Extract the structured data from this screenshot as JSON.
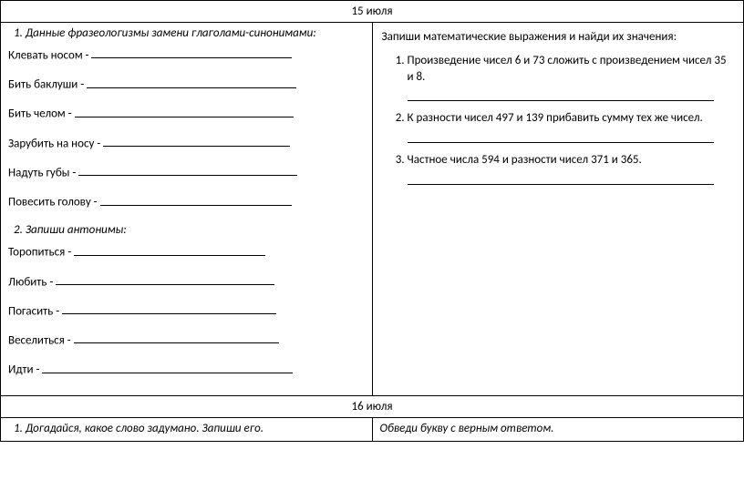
{
  "date1": "15 июля",
  "date2": "16 июля",
  "left": {
    "task1_num": "1.",
    "task1_title": "Данные фразеологизмы замени глаголами-синонимами:",
    "lines": [
      {
        "label": "Клевать носом - ",
        "blank_w": 220
      },
      {
        "label": "Бить баклуши - ",
        "blank_w": 230
      },
      {
        "label": "Бить челом - ",
        "blank_w": 240
      },
      {
        "label": "Зарубить на носу - ",
        "blank_w": 205
      },
      {
        "label": "Надуть губы - ",
        "blank_w": 240
      },
      {
        "label": "Повесить голову - ",
        "blank_w": 210
      }
    ],
    "task2_num": "2.",
    "task2_title": "Запиши антонимы:",
    "lines2": [
      {
        "label": "Торопиться - ",
        "blank_w": 210
      },
      {
        "label": "Любить - ",
        "blank_w": 240
      },
      {
        "label": "Погасить - ",
        "blank_w": 235
      },
      {
        "label": "Веселиться - ",
        "blank_w": 225
      },
      {
        "label": "Идти - ",
        "blank_w": 275
      }
    ]
  },
  "right": {
    "header": "Запиши математические выражения и найди их значения:",
    "items": [
      "Произведение чисел 6 и 73 сложить с произведением чисел 35 и 8.",
      "К разности чисел 497 и 139 прибавить сумму тех же чисел.",
      "Частное числа 594 и разности чисел 371 и 365."
    ]
  },
  "bottom_left": {
    "num": "1.",
    "text": "Догадайся, какое слово задумано. Запиши его."
  },
  "bottom_right": "Обведи букву с  верным ответом."
}
